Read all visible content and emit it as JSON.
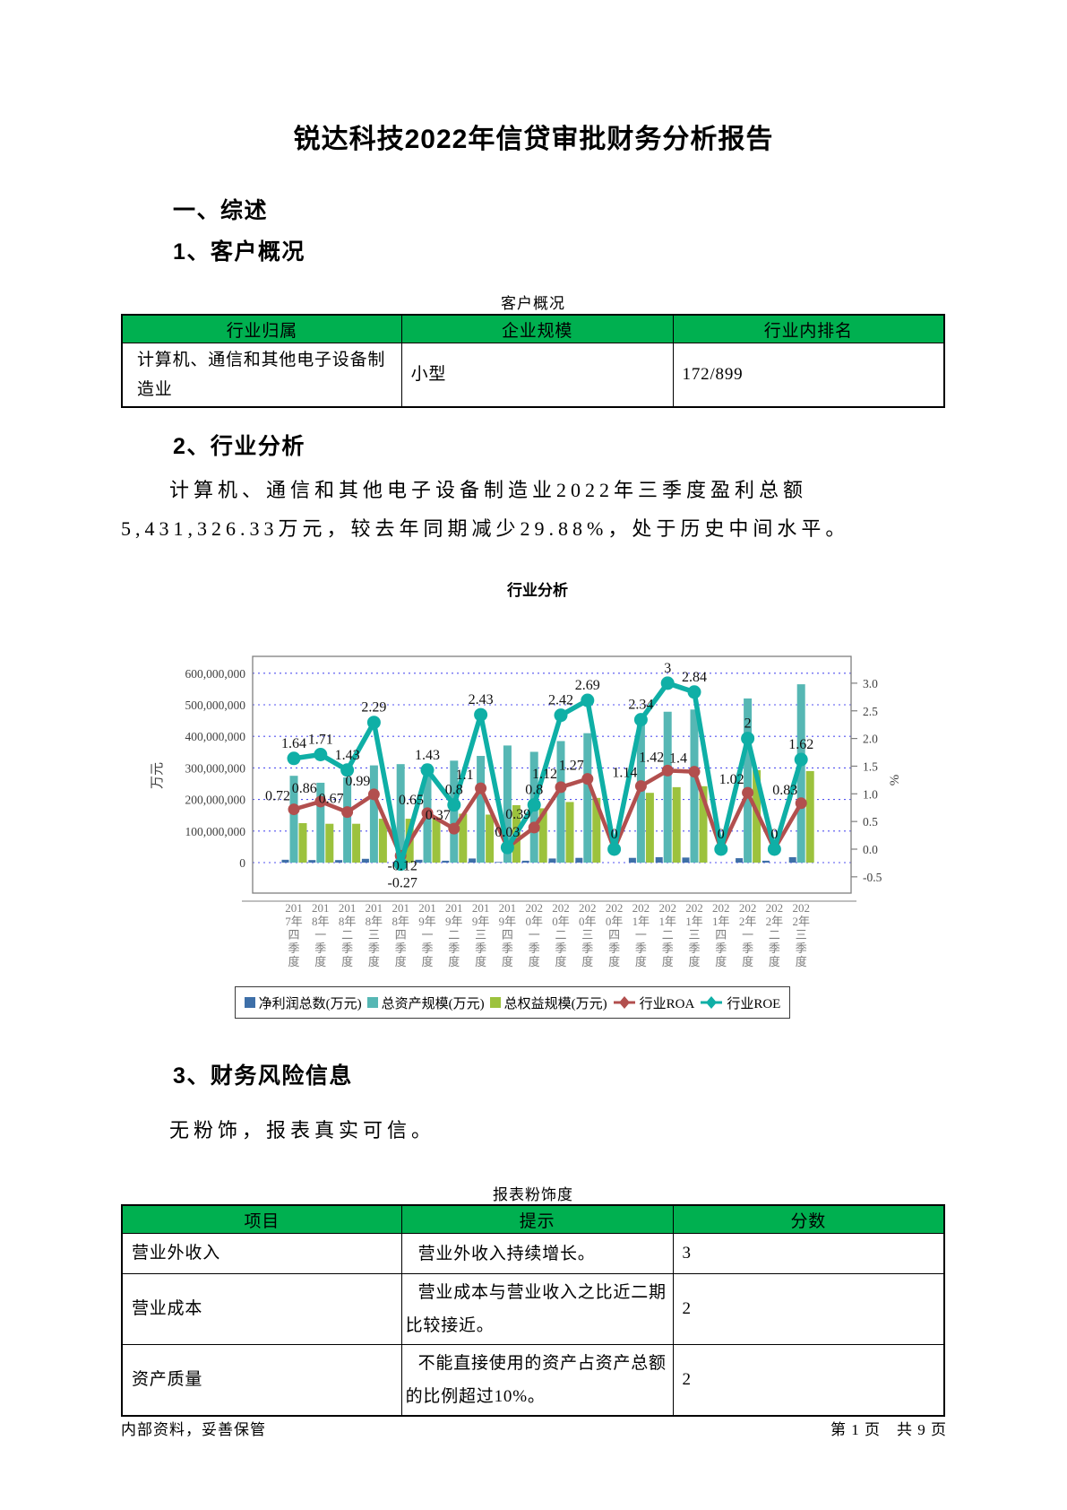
{
  "page": {
    "title": "锐达科技2022年信贷审批财务分析报告",
    "footer_left": "内部资料，妥善保管",
    "footer_right": "第 1 页　共 9 页"
  },
  "sections": {
    "overview_heading": "一、综述",
    "customer_heading": "1、客户概况",
    "industry_heading": "2、行业分析",
    "industry_paragraph": "计算机、通信和其他电子设备制造业2022年三季度盈利总额5,431,326.33万元，较去年同期减少29.88%，处于历史中间水平。",
    "risk_heading": "3、财务风险信息",
    "risk_paragraph": "无粉饰，报表真实可信。"
  },
  "customer_table": {
    "caption": "客户概况",
    "headers": [
      "行业归属",
      "企业规模",
      "行业内排名"
    ],
    "rows": [
      [
        "计算机、通信和其他电子设备制造业",
        "小型",
        "172/899"
      ]
    ]
  },
  "risk_table": {
    "caption": "报表粉饰度",
    "headers": [
      "项目",
      "提示",
      "分数"
    ],
    "rows": [
      [
        "营业外收入",
        "营业外收入持续增长。",
        "3"
      ],
      [
        "营业成本",
        "营业成本与营业收入之比近二期比较接近。",
        "2"
      ],
      [
        "资产质量",
        "不能直接使用的资产占资产总额的比例超过10%。",
        "2"
      ]
    ]
  },
  "chart_data": {
    "type": "bar+line",
    "title": "行业分析",
    "categories": [
      "2017年四季度",
      "2018年一季度",
      "2018年二季度",
      "2018年三季度",
      "2018年四季度",
      "2019年一季度",
      "2019年二季度",
      "2019年三季度",
      "2019年四季度",
      "2020年一季度",
      "2020年二季度",
      "2020年三季度",
      "2020年四季度",
      "2021年一季度",
      "2021年二季度",
      "2021年三季度",
      "2021年四季度",
      "2022年一季度",
      "2022年二季度",
      "2022年三季度"
    ],
    "left_axis": {
      "label": "万元",
      "ticks": [
        600000000,
        500000000,
        400000000,
        300000000,
        200000000,
        100000000,
        0
      ],
      "range": [
        0,
        653000000
      ]
    },
    "right_axis": {
      "label": "%",
      "ticks": [
        3.0,
        2.5,
        2.0,
        1.5,
        1.0,
        0.5,
        0.0,
        -0.5
      ],
      "range": [
        -0.79,
        3.49
      ]
    },
    "legend_position": "bottom",
    "grid": "horizontal dotted",
    "series": [
      {
        "key": "net_profit",
        "name": "净利润总数(万元)",
        "type": "bar",
        "axis": "left",
        "color": "#3E6FA8",
        "estimated": true,
        "values": [
          9000000,
          8000000,
          8000000,
          12000000,
          0,
          9000000,
          6000000,
          13000000,
          2000000,
          6000000,
          13000000,
          15000000,
          0,
          15000000,
          17000000,
          16000000,
          0,
          14000000,
          6000000,
          17000000
        ]
      },
      {
        "key": "total_assets",
        "name": "总资产规模(万元)",
        "type": "bar",
        "axis": "left",
        "color": "#56B7B4",
        "estimated": true,
        "values": [
          275000000,
          253000000,
          270000000,
          308000000,
          312000000,
          312000000,
          323000000,
          338000000,
          371000000,
          351000000,
          385000000,
          410000000,
          0,
          465000000,
          478000000,
          485000000,
          0,
          520000000,
          0,
          565000000
        ]
      },
      {
        "key": "total_equity",
        "name": "总权益规模(万元)",
        "type": "bar",
        "axis": "left",
        "color": "#9CC23D",
        "estimated": true,
        "values": [
          125000000,
          123000000,
          123000000,
          139000000,
          139000000,
          143000000,
          155000000,
          152000000,
          182000000,
          172000000,
          192000000,
          205000000,
          0,
          221000000,
          239000000,
          242000000,
          0,
          293000000,
          0,
          290000000
        ]
      },
      {
        "key": "roa",
        "name": "行业ROA",
        "type": "line",
        "axis": "right",
        "color": "#B24F4E",
        "values": [
          0.72,
          0.86,
          0.67,
          0.99,
          -0.12,
          0.65,
          0.37,
          1.1,
          0.03,
          0.39,
          1.12,
          1.27,
          0,
          1.14,
          1.42,
          1.4,
          0,
          1.02,
          0,
          0.83
        ]
      },
      {
        "key": "roe",
        "name": "行业ROE",
        "type": "line",
        "axis": "right",
        "color": "#0FAFA6",
        "values": [
          1.64,
          1.71,
          1.43,
          2.29,
          -0.27,
          1.43,
          0.8,
          2.43,
          0.03,
          0.8,
          2.42,
          2.69,
          0,
          2.34,
          3,
          2.84,
          0,
          2,
          0,
          1.62
        ]
      }
    ]
  },
  "colors": {
    "table_header_green": "#00B050",
    "grid_line": "#5151F0",
    "plot_border": "#7F7F7F",
    "axis_text": "#3F3F3F",
    "tick_label_gray": "#7D7D7D",
    "data_label": "#111111"
  }
}
